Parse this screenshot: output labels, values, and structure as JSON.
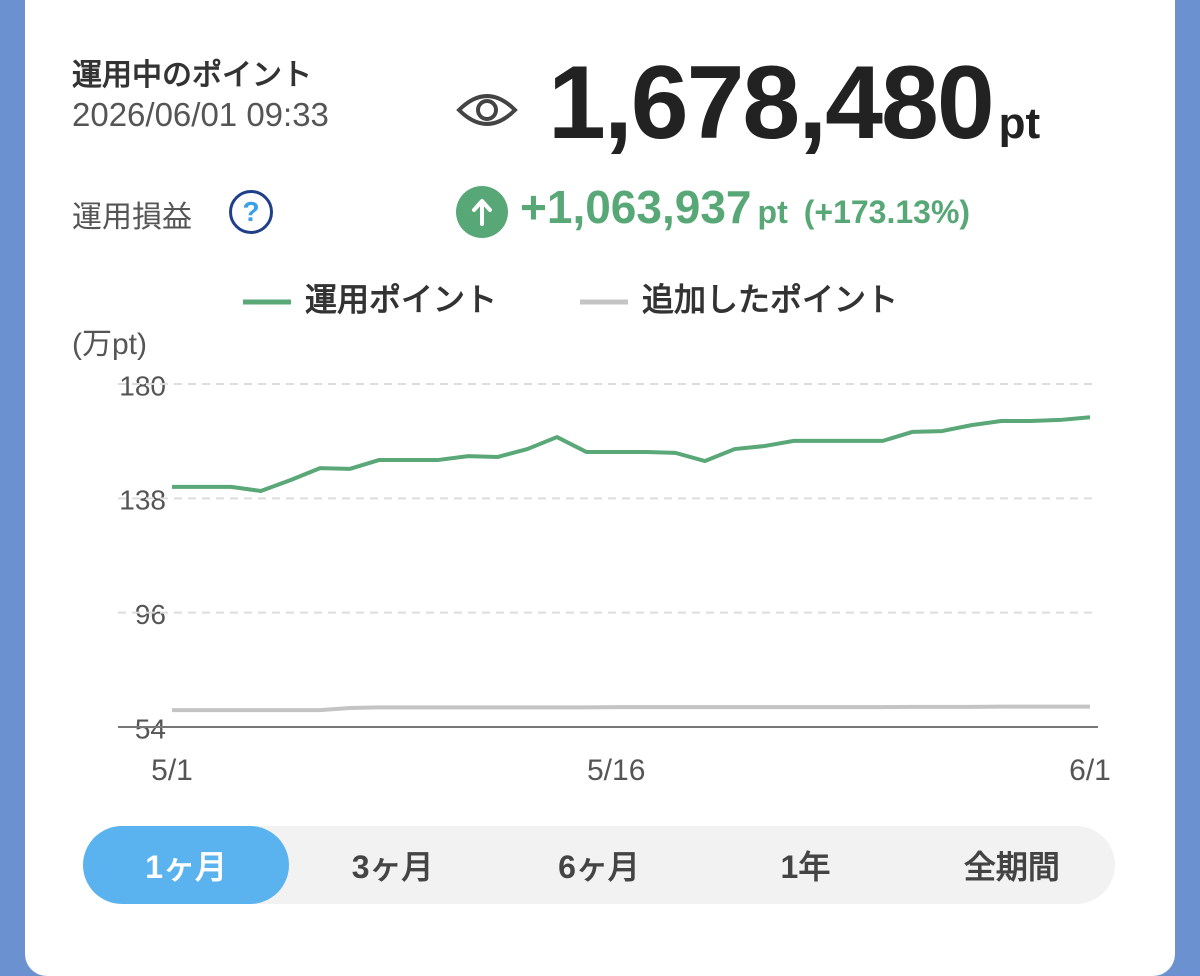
{
  "header": {
    "title": "運用中のポイント",
    "timestamp": "2026/06/01 09:33",
    "balance": "1,678,480",
    "balance_unit": "pt",
    "profit_label": "運用損益",
    "profit_help": "?",
    "profit": "+1,063,937",
    "profit_unit": "pt",
    "profit_rate": "(+173.13%)"
  },
  "chart_data": {
    "type": "line",
    "y_unit_label": "(万pt)",
    "categories": [
      "5/1",
      null,
      null,
      null,
      null,
      null,
      null,
      null,
      null,
      null,
      null,
      null,
      null,
      null,
      null,
      "5/16",
      null,
      null,
      null,
      null,
      null,
      null,
      null,
      null,
      null,
      null,
      null,
      null,
      null,
      null,
      null,
      "6/1"
    ],
    "series": [
      {
        "name": "運用ポイント",
        "color": "#5aa777",
        "values": [
          142.2,
          142.2,
          142.2,
          140.7,
          144.7,
          149.1,
          148.8,
          152.1,
          152.1,
          152.1,
          153.5,
          153.2,
          156.1,
          160.5,
          155.0,
          155.0,
          155.0,
          154.7,
          151.7,
          156.1,
          157.2,
          159.1,
          159.1,
          159.1,
          159.1,
          162.4,
          162.7,
          164.9,
          166.4,
          166.4,
          166.8,
          167.8
        ]
      },
      {
        "name": "追加したポイント",
        "color": "#c4c4c4",
        "values": [
          60.2,
          60.2,
          60.2,
          60.2,
          60.2,
          60.2,
          61.0,
          61.2,
          61.2,
          61.2,
          61.2,
          61.2,
          61.2,
          61.2,
          61.2,
          61.3,
          61.3,
          61.3,
          61.3,
          61.3,
          61.3,
          61.3,
          61.3,
          61.3,
          61.3,
          61.4,
          61.4,
          61.4,
          61.5,
          61.5,
          61.5,
          61.5
        ]
      }
    ],
    "ylim": [
      54,
      180
    ],
    "yticks": [
      54,
      96,
      138,
      180
    ],
    "grid": true
  },
  "tabs": [
    "1ヶ月",
    "3ヶ月",
    "6ヶ月",
    "1年",
    "全期間"
  ],
  "selected_tab": 0
}
